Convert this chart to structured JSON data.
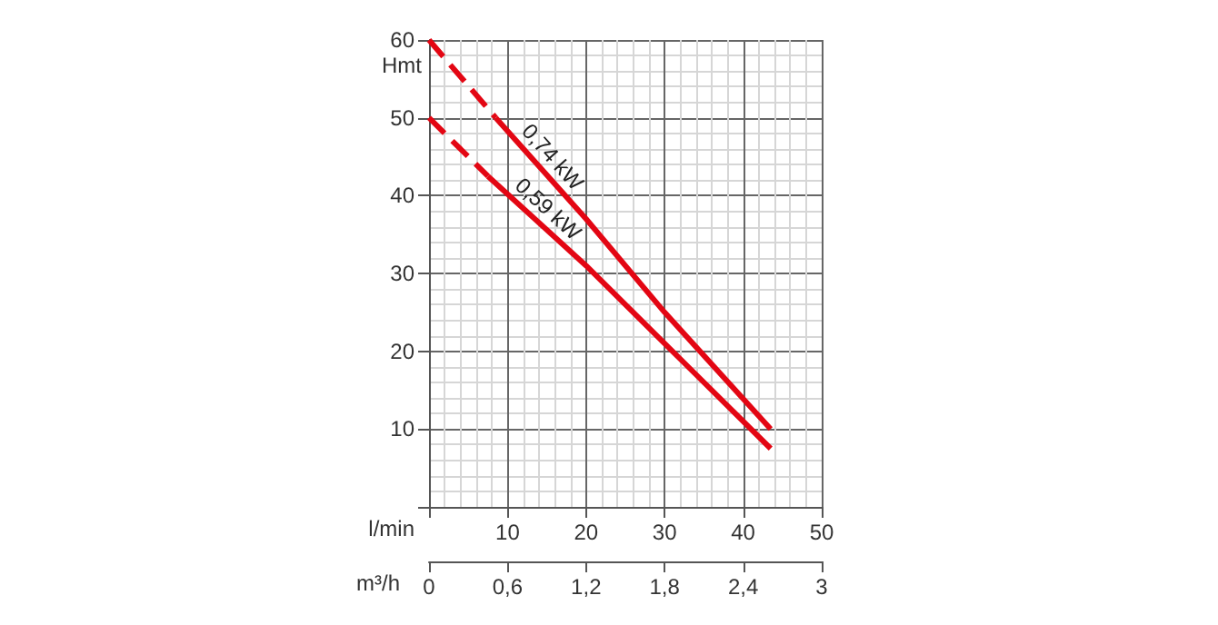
{
  "chart_data": {
    "type": "line",
    "xlabel": "l/min",
    "ylabel": "Hmt",
    "x2label": "m³/h",
    "xlim": [
      0,
      50
    ],
    "xticks": [
      {
        "value": 0,
        "label": null
      },
      10,
      20,
      30,
      40,
      50
    ],
    "x2lim": [
      0,
      3
    ],
    "x2ticks": [
      0,
      {
        "value": 0.6,
        "label": "0,6"
      },
      {
        "value": 1.2,
        "label": "1,2"
      },
      {
        "value": 1.8,
        "label": "1,8"
      },
      {
        "value": 2.4,
        "label": "2,4"
      },
      3
    ],
    "ylim": [
      0,
      60
    ],
    "yticks": [
      {
        "value": 0,
        "label": null
      },
      10,
      20,
      30,
      40,
      50,
      60
    ],
    "grid": true,
    "legend": false,
    "marker": "none",
    "series": [
      {
        "color": "#e30613",
        "line_style": "dashed",
        "x": [
          0,
          8.5
        ],
        "values": [
          60,
          50
        ]
      },
      {
        "name": "0,74 kW",
        "color": "#e30613",
        "line_style": "solid",
        "x": [
          8.5,
          20,
          30,
          43.5
        ],
        "values": [
          50,
          37,
          25,
          10
        ]
      },
      {
        "color": "#e30613",
        "line_style": "dashed",
        "x": [
          0,
          7.5
        ],
        "values": [
          50,
          42.5
        ]
      },
      {
        "name": "0,59 kW",
        "color": "#e30613",
        "line_style": "solid",
        "x": [
          7.5,
          20,
          30,
          43.5
        ],
        "values": [
          42.5,
          31,
          21,
          7.5
        ]
      }
    ]
  }
}
